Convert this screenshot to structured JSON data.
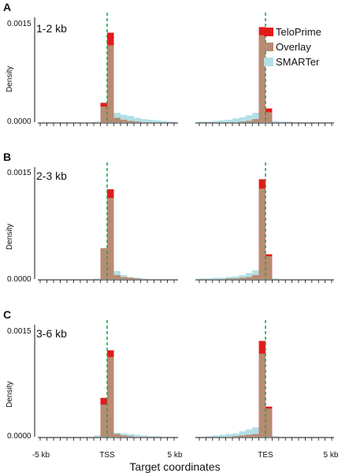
{
  "colors": {
    "teloprime": "#e31a1c",
    "overlay": "#b88b72",
    "smarter": "#b3e0e6",
    "vline": "#1fa84a"
  },
  "figure": {
    "ylabel": "Density",
    "xlabel": "Target coordinates",
    "legend": [
      "TeloPrime",
      "Overlay",
      "SMARTer"
    ],
    "xticks": [
      "-5 kb",
      "TSS",
      "5 kb",
      "TES",
      "5 kb"
    ]
  },
  "chart_data": [
    {
      "type": "bar",
      "panel": "A",
      "label": "1-2 kb",
      "ylabel": "Density",
      "yticks": [
        "0.0015",
        "0.0000"
      ],
      "ylim": [
        0,
        0.0016
      ],
      "legend_position": "top-right",
      "legend": [
        "TeloPrime",
        "Overlay",
        "SMARTer"
      ],
      "tss": {
        "x_kb": [
          -5,
          -4.5,
          -4,
          -3.5,
          -3,
          -2.5,
          -2,
          -1.5,
          -1,
          -0.5,
          0,
          0.5,
          1,
          1.5,
          2,
          2.5,
          3,
          3.5,
          4,
          4.5
        ],
        "series": [
          {
            "name": "TeloPrime",
            "values": [
              0,
              0,
              0,
              0,
              0,
              0,
              0,
              0,
              0,
              0.00031,
              0.00143,
              7e-05,
              4e-05,
              2e-05,
              1e-05,
              0,
              0,
              0,
              0,
              0
            ]
          },
          {
            "name": "SMARTer",
            "values": [
              0,
              0,
              0,
              0,
              0,
              0,
              0,
              0,
              1e-05,
              0.00025,
              0.00123,
              0.00015,
              0.00012,
              0.0001,
              7e-05,
              5e-05,
              4e-05,
              3e-05,
              2e-05,
              1e-05
            ]
          }
        ]
      },
      "tes": {
        "x_kb": [
          -5,
          -4.5,
          -4,
          -3.5,
          -3,
          -2.5,
          -2,
          -1.5,
          -1,
          -0.5,
          0,
          0.5,
          1,
          1.5,
          2,
          2.5,
          3,
          3.5,
          4,
          4.5
        ],
        "series": [
          {
            "name": "TeloPrime",
            "values": [
              0,
              0,
              0,
              0,
              0,
              0,
              1e-05,
              2e-05,
              5e-05,
              0.00152,
              0.00022,
              0,
              0,
              0,
              0,
              0,
              0,
              0,
              0,
              0
            ]
          },
          {
            "name": "SMARTer",
            "values": [
              1e-05,
              1e-05,
              2e-05,
              3e-05,
              4e-05,
              6e-05,
              8e-05,
              0.00011,
              0.00015,
              0.00139,
              0.00016,
              2e-05,
              1e-05,
              1e-05,
              0,
              0,
              0,
              0,
              0,
              0
            ]
          }
        ]
      }
    },
    {
      "type": "bar",
      "panel": "B",
      "label": "2-3 kb",
      "ylabel": "Density",
      "yticks": [
        "0.0015",
        "0.0000"
      ],
      "ylim": [
        0,
        0.0016
      ],
      "legend": [],
      "tss": {
        "x_kb": [
          -5,
          -4.5,
          -4,
          -3.5,
          -3,
          -2.5,
          -2,
          -1.5,
          -1,
          -0.5,
          0,
          0.5,
          1,
          1.5,
          2,
          2.5,
          3,
          3.5,
          4,
          4.5
        ],
        "series": [
          {
            "name": "TeloPrime",
            "values": [
              0,
              0,
              0,
              0,
              0,
              0,
              0,
              0,
              0,
              0.00046,
              0.00134,
              6e-05,
              3e-05,
              2e-05,
              1e-05,
              0,
              0,
              0,
              0,
              0
            ]
          },
          {
            "name": "SMARTer",
            "values": [
              0,
              0,
              0,
              0,
              0,
              0,
              0,
              0,
              1e-05,
              0.00046,
              0.00121,
              0.00012,
              6e-05,
              3e-05,
              2e-05,
              1e-05,
              0,
              0,
              0,
              0
            ]
          }
        ]
      },
      "tes": {
        "x_kb": [
          -5,
          -4.5,
          -4,
          -3.5,
          -3,
          -2.5,
          -2,
          -1.5,
          -1,
          -0.5,
          0,
          0.5,
          1,
          1.5,
          2,
          2.5,
          3,
          3.5,
          4,
          4.5
        ],
        "series": [
          {
            "name": "TeloPrime",
            "values": [
              0,
              0,
              0,
              0,
              1e-05,
              1e-05,
              2e-05,
              3e-05,
              6e-05,
              0.00149,
              0.00037,
              0,
              0,
              0,
              0,
              0,
              0,
              0,
              0,
              0
            ]
          },
          {
            "name": "SMARTer",
            "values": [
              1e-05,
              1e-05,
              2e-05,
              2e-05,
              3e-05,
              4e-05,
              6e-05,
              9e-05,
              0.00013,
              0.00135,
              0.00034,
              1e-05,
              0,
              0,
              0,
              0,
              0,
              0,
              0,
              0
            ]
          }
        ]
      }
    },
    {
      "type": "bar",
      "panel": "C",
      "label": "3-6 kb",
      "ylabel": "Density",
      "yticks": [
        "0.0015",
        "0.0000"
      ],
      "ylim": [
        0,
        0.0016
      ],
      "legend": [],
      "tss": {
        "x_kb": [
          -5,
          -4.5,
          -4,
          -3.5,
          -3,
          -2.5,
          -2,
          -1.5,
          -1,
          -0.5,
          0,
          0.5,
          1,
          1.5,
          2,
          2.5,
          3,
          3.5,
          4,
          4.5
        ],
        "series": [
          {
            "name": "TeloPrime",
            "values": [
              0,
              0,
              0,
              0,
              0,
              0,
              0,
              0,
              0,
              0.00058,
              0.00129,
              4e-05,
              2e-05,
              1e-05,
              0,
              0,
              0,
              0,
              0,
              0
            ]
          },
          {
            "name": "SMARTer",
            "values": [
              0,
              0,
              0,
              0,
              0,
              0,
              0,
              0,
              2e-05,
              0.00048,
              0.00119,
              6e-05,
              5e-05,
              4e-05,
              3e-05,
              2e-05,
              1e-05,
              1e-05,
              0,
              0
            ]
          }
        ]
      },
      "tes": {
        "x_kb": [
          -5,
          -4.5,
          -4,
          -3.5,
          -3,
          -2.5,
          -2,
          -1.5,
          -1,
          -0.5,
          0,
          0.5,
          1,
          1.5,
          2,
          2.5,
          3,
          3.5,
          4,
          4.5
        ],
        "series": [
          {
            "name": "TeloPrime",
            "values": [
              0,
              0,
              0,
              0,
              0,
              1e-05,
              2e-05,
              3e-05,
              4e-05,
              0.00143,
              0.00045,
              0,
              0,
              0,
              0,
              0,
              0,
              0,
              0,
              0
            ]
          },
          {
            "name": "SMARTer",
            "values": [
              0,
              1e-05,
              2e-05,
              3e-05,
              4e-05,
              5e-05,
              8e-05,
              0.00011,
              0.00014,
              0.00124,
              0.00042,
              1e-05,
              0,
              0,
              0,
              0,
              0,
              0,
              0,
              0
            ]
          }
        ]
      }
    }
  ]
}
